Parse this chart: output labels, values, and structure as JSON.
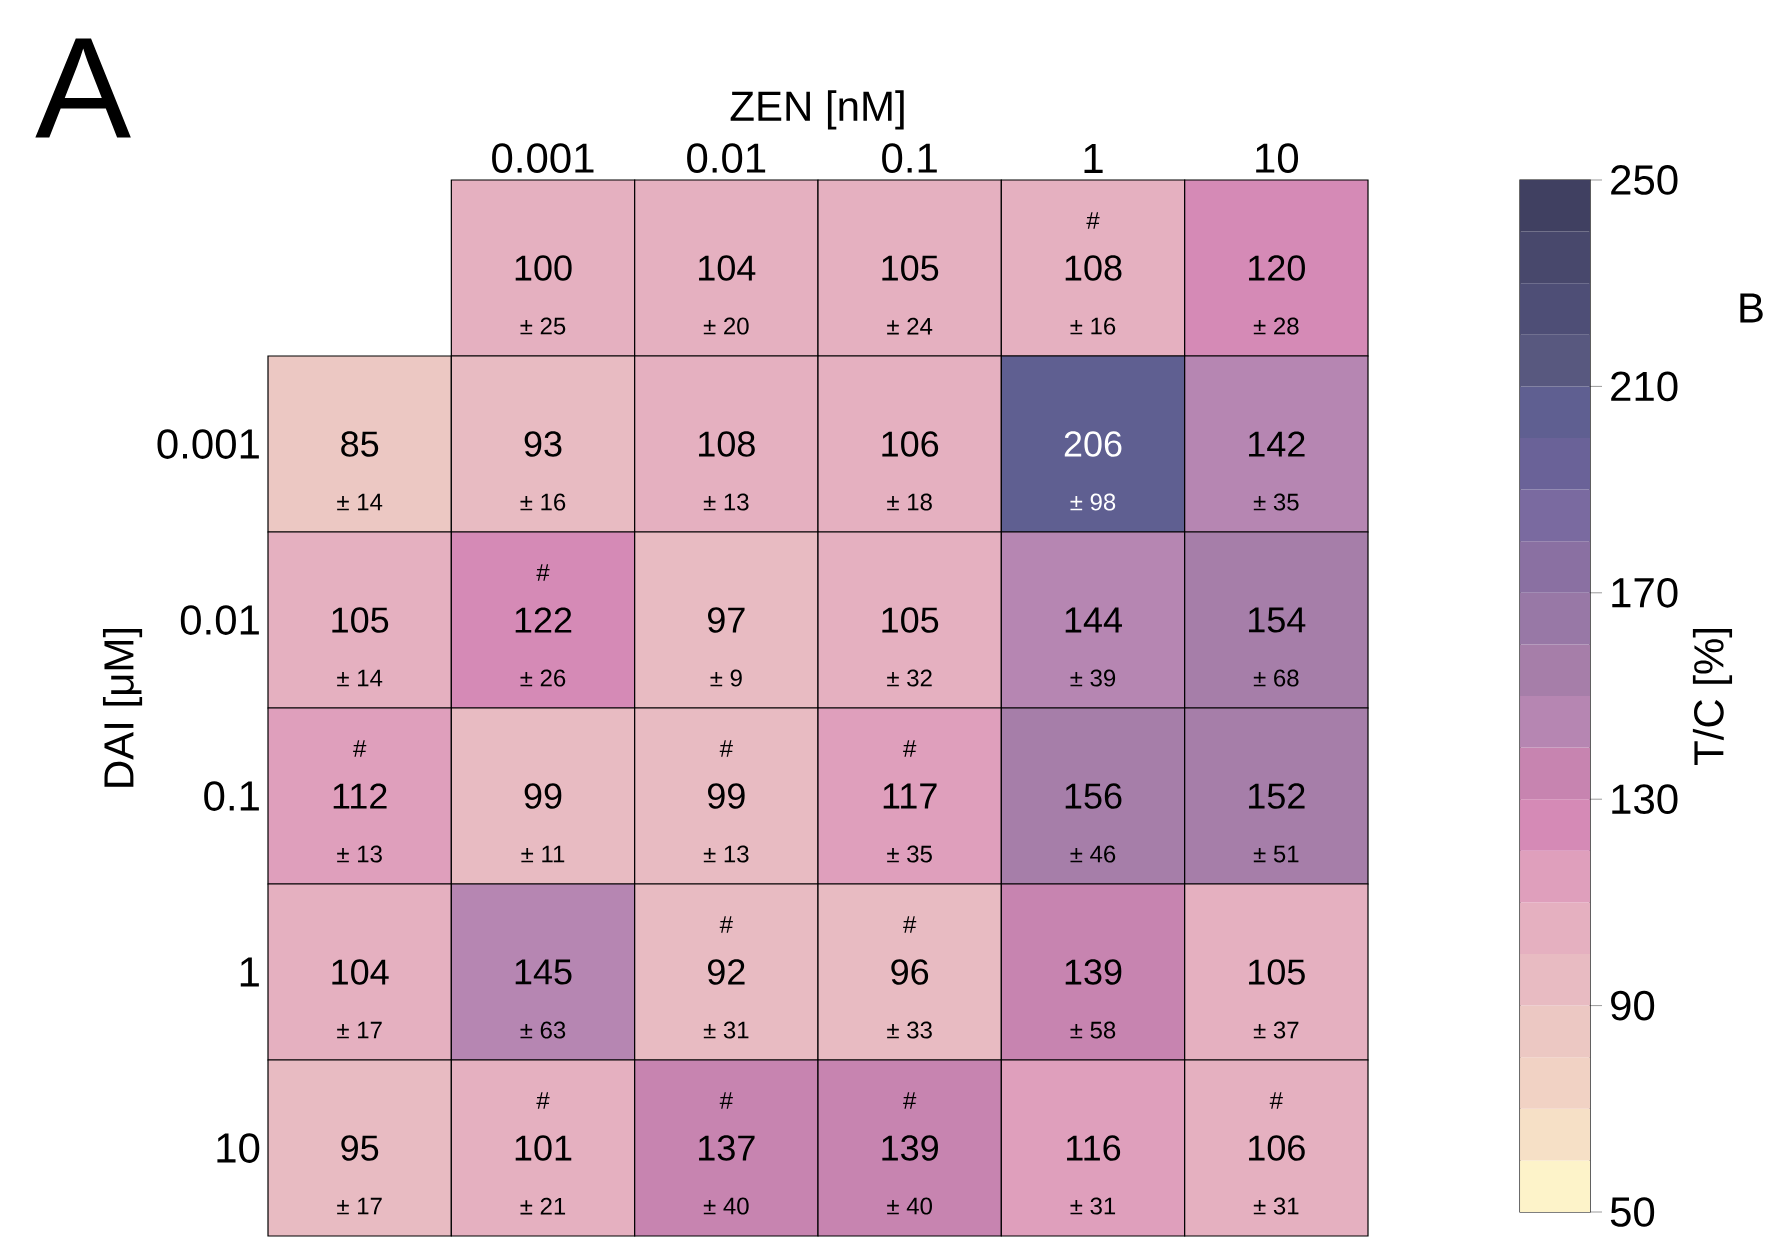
{
  "chart_data": {
    "type": "heatmap",
    "title": "A",
    "xlabel": "ZEN [nM]",
    "ylabel": "DAI [μM]",
    "clabel": "T/C [%]",
    "annotations": [
      "B"
    ],
    "categories": [
      null,
      "0.001",
      "0.01",
      "0.1",
      "1",
      "10"
    ],
    "y_categories": [
      null,
      "0.001",
      "0.01",
      "0.1",
      "1",
      "10"
    ],
    "cells": [
      [
        null,
        100,
        104,
        105,
        108,
        120
      ],
      [
        85,
        93,
        108,
        106,
        206,
        142
      ],
      [
        105,
        122,
        97,
        105,
        144,
        154
      ],
      [
        112,
        99,
        99,
        117,
        156,
        152
      ],
      [
        104,
        145,
        92,
        96,
        139,
        105
      ],
      [
        95,
        101,
        137,
        139,
        116,
        106
      ]
    ],
    "cell_labels": [
      [
        null,
        [
          "100",
          "± 25"
        ],
        [
          "104",
          "± 20"
        ],
        [
          "105",
          "± 24"
        ],
        [
          "#",
          "108",
          "± 16"
        ],
        [
          "120",
          "± 28"
        ]
      ],
      [
        [
          "85",
          "± 14"
        ],
        [
          "93",
          "± 16"
        ],
        [
          "108",
          "± 13"
        ],
        [
          "106",
          "± 18"
        ],
        [
          "206",
          "± 98"
        ],
        [
          "142",
          "± 35"
        ]
      ],
      [
        [
          "105",
          "± 14"
        ],
        [
          "#",
          "122",
          "± 26"
        ],
        [
          "97",
          "± 9"
        ],
        [
          "105",
          "± 32"
        ],
        [
          "144",
          "± 39"
        ],
        [
          "154",
          "± 68"
        ]
      ],
      [
        [
          "#",
          "112",
          "± 13"
        ],
        [
          "99",
          "± 11"
        ],
        [
          "#",
          "99",
          "± 13"
        ],
        [
          "#",
          "117",
          "± 35"
        ],
        [
          "156",
          "± 46"
        ],
        [
          "152",
          "± 51"
        ]
      ],
      [
        [
          "104",
          "± 17"
        ],
        [
          "145",
          "± 63"
        ],
        [
          "#",
          "92",
          "± 31"
        ],
        [
          "#",
          "96",
          "± 33"
        ],
        [
          "139",
          "± 58"
        ],
        [
          "105",
          "± 37"
        ]
      ],
      [
        [
          "95",
          "± 17"
        ],
        [
          "#",
          "101",
          "± 21"
        ],
        [
          "#",
          "137",
          "± 40"
        ],
        [
          "#",
          "139",
          "± 40"
        ],
        [
          "116",
          "± 31"
        ],
        [
          "#",
          "106",
          "± 31"
        ]
      ]
    ],
    "clim": [
      50,
      250
    ],
    "cticks": [
      50,
      90,
      130,
      170,
      210,
      250
    ]
  }
}
